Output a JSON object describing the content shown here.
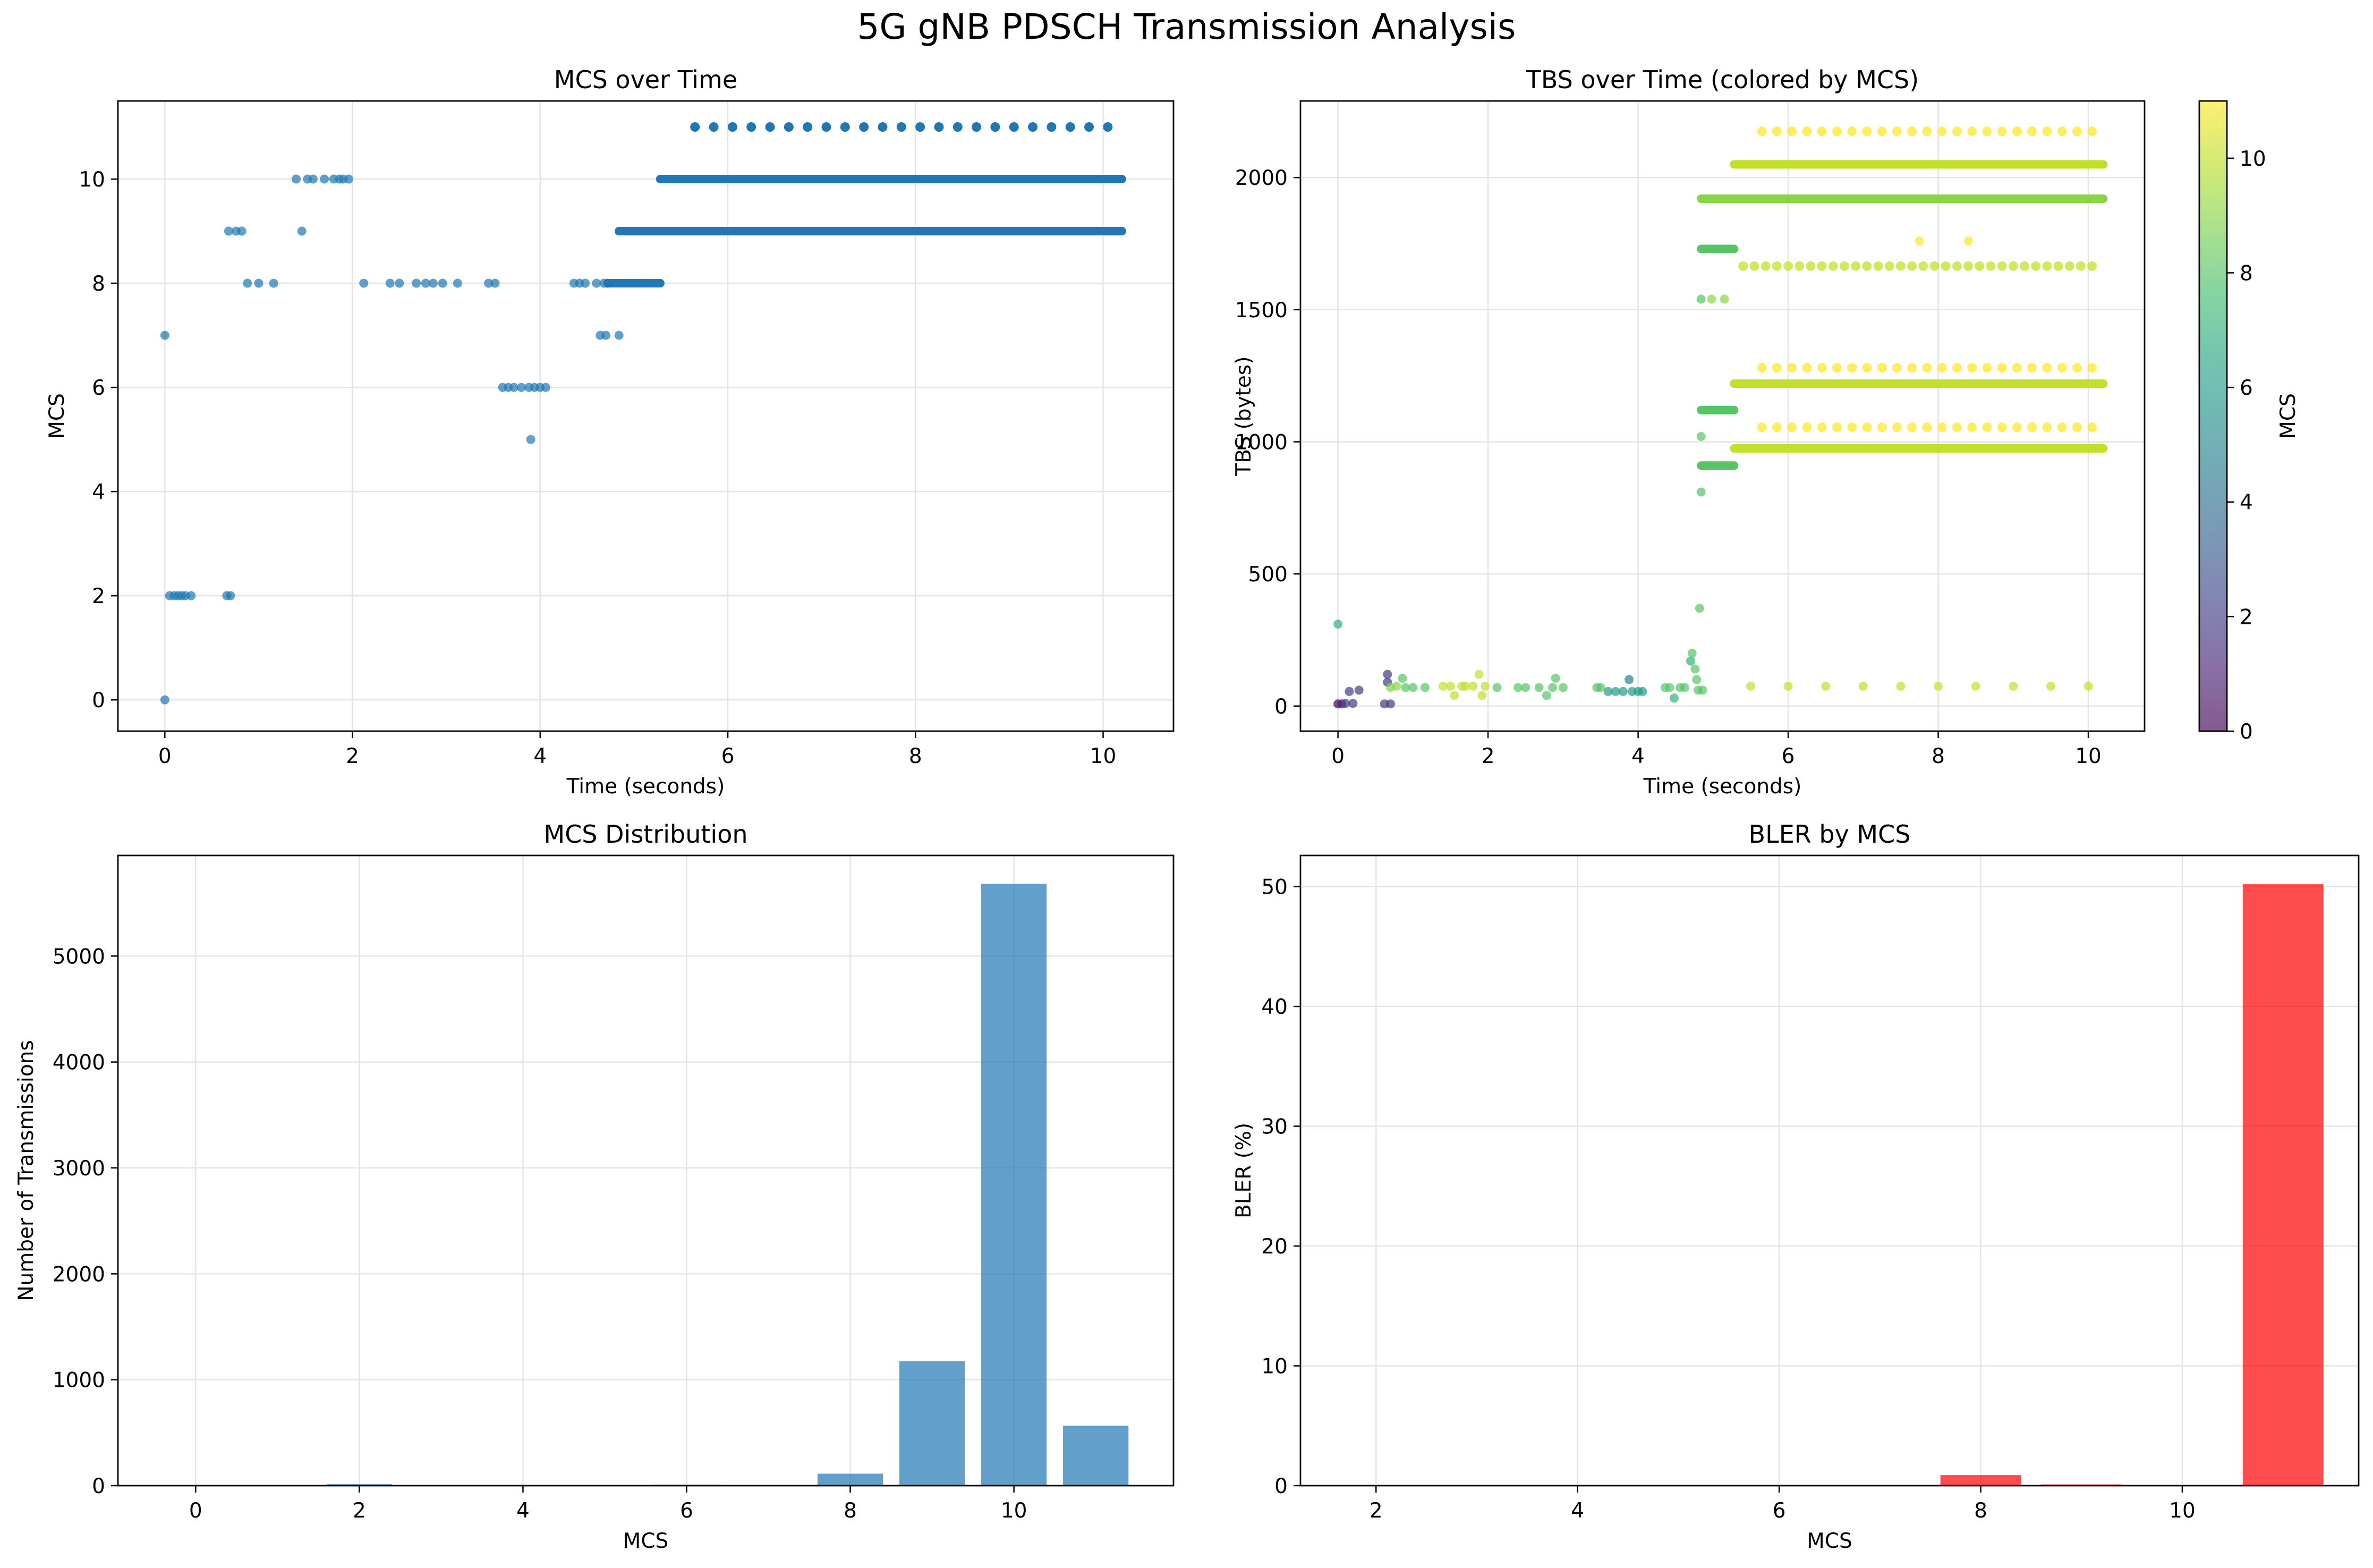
{
  "figure": {
    "suptitle": "5G gNB PDSCH Transmission Analysis"
  },
  "chart_data": [
    {
      "id": "mcs_time",
      "type": "scatter",
      "title": "MCS over Time",
      "xlabel": "Time (seconds)",
      "ylabel": "MCS",
      "xlim": [
        -0.5,
        10.75
      ],
      "ylim": [
        -0.6,
        11.5
      ],
      "xticks": [
        0,
        2,
        4,
        6,
        8,
        10
      ],
      "yticks": [
        0,
        2,
        4,
        6,
        8,
        10
      ],
      "grid": true,
      "color": "#1f77b4",
      "points": [
        [
          0.0,
          0
        ],
        [
          0.0,
          7
        ],
        [
          0.05,
          2
        ],
        [
          0.1,
          2
        ],
        [
          0.14,
          2
        ],
        [
          0.18,
          2
        ],
        [
          0.22,
          2
        ],
        [
          0.28,
          2
        ],
        [
          0.66,
          2
        ],
        [
          0.7,
          2
        ],
        [
          0.68,
          9
        ],
        [
          0.76,
          9
        ],
        [
          0.82,
          9
        ],
        [
          0.88,
          8
        ],
        [
          1.0,
          8
        ],
        [
          1.16,
          8
        ],
        [
          1.4,
          10
        ],
        [
          1.52,
          10
        ],
        [
          1.58,
          10
        ],
        [
          1.7,
          10
        ],
        [
          1.8,
          10
        ],
        [
          1.86,
          10
        ],
        [
          1.9,
          10
        ],
        [
          1.96,
          10
        ],
        [
          1.46,
          9
        ],
        [
          2.12,
          8
        ],
        [
          2.4,
          8
        ],
        [
          2.5,
          8
        ],
        [
          2.68,
          8
        ],
        [
          2.78,
          8
        ],
        [
          2.86,
          8
        ],
        [
          2.96,
          8
        ],
        [
          3.12,
          8
        ],
        [
          3.45,
          8
        ],
        [
          3.52,
          8
        ],
        [
          3.6,
          6
        ],
        [
          3.66,
          6
        ],
        [
          3.72,
          6
        ],
        [
          3.8,
          6
        ],
        [
          3.88,
          6
        ],
        [
          3.94,
          6
        ],
        [
          4.0,
          6
        ],
        [
          4.06,
          6
        ],
        [
          3.9,
          5
        ],
        [
          4.36,
          8
        ],
        [
          4.42,
          8
        ],
        [
          4.48,
          8
        ],
        [
          4.6,
          8
        ],
        [
          4.68,
          8
        ],
        [
          4.72,
          8
        ],
        [
          4.64,
          7
        ],
        [
          4.7,
          7
        ],
        [
          4.84,
          7
        ]
      ],
      "segments": [
        {
          "x0": 4.72,
          "x1": 5.28,
          "y": 8
        },
        {
          "x0": 4.84,
          "x1": 10.2,
          "y": 9
        },
        {
          "x0": 5.28,
          "x1": 10.2,
          "y": 10
        }
      ],
      "dot_rows": [
        {
          "x0": 5.65,
          "x1": 10.2,
          "step": 0.2,
          "y": 11
        }
      ]
    },
    {
      "id": "tbs_time",
      "type": "scatter",
      "title": "TBS over Time (colored by MCS)",
      "xlabel": "Time (seconds)",
      "ylabel": "TBS (bytes)",
      "xlim": [
        -0.5,
        10.75
      ],
      "ylim": [
        -95,
        2290
      ],
      "xticks": [
        0,
        2,
        4,
        6,
        8,
        10
      ],
      "yticks": [
        0,
        500,
        1000,
        1500,
        2000
      ],
      "grid": true,
      "colorbar": {
        "label": "MCS",
        "min": 0,
        "max": 11,
        "ticks": [
          0,
          2,
          4,
          6,
          8,
          10
        ],
        "colormap": "viridis"
      },
      "points": [
        [
          0.0,
          310,
          7
        ],
        [
          0.0,
          8,
          0
        ],
        [
          0.05,
          8,
          1
        ],
        [
          0.1,
          10,
          2
        ],
        [
          0.15,
          55,
          2
        ],
        [
          0.2,
          10,
          2
        ],
        [
          0.28,
          60,
          2
        ],
        [
          0.66,
          120,
          2
        ],
        [
          0.66,
          90,
          2
        ],
        [
          0.62,
          8,
          2
        ],
        [
          0.7,
          8,
          2
        ],
        [
          0.7,
          70,
          9
        ],
        [
          0.78,
          75,
          9
        ],
        [
          0.86,
          105,
          8
        ],
        [
          0.9,
          70,
          8
        ],
        [
          1.0,
          70,
          8
        ],
        [
          1.16,
          70,
          8
        ],
        [
          1.4,
          75,
          10
        ],
        [
          1.5,
          75,
          10
        ],
        [
          1.55,
          40,
          10
        ],
        [
          1.65,
          75,
          10
        ],
        [
          1.7,
          75,
          10
        ],
        [
          1.8,
          75,
          10
        ],
        [
          1.88,
          120,
          10
        ],
        [
          1.92,
          40,
          10
        ],
        [
          1.96,
          75,
          10
        ],
        [
          2.12,
          70,
          8
        ],
        [
          2.4,
          70,
          8
        ],
        [
          2.5,
          70,
          8
        ],
        [
          2.68,
          70,
          8
        ],
        [
          2.78,
          40,
          8
        ],
        [
          2.86,
          70,
          8
        ],
        [
          2.9,
          105,
          8
        ],
        [
          3.0,
          70,
          8
        ],
        [
          3.45,
          70,
          8
        ],
        [
          3.5,
          70,
          8
        ],
        [
          3.6,
          55,
          6
        ],
        [
          3.7,
          55,
          6
        ],
        [
          3.8,
          55,
          6
        ],
        [
          3.88,
          100,
          5
        ],
        [
          3.92,
          55,
          6
        ],
        [
          4.0,
          55,
          6
        ],
        [
          4.06,
          55,
          6
        ],
        [
          4.36,
          70,
          8
        ],
        [
          4.42,
          70,
          8
        ],
        [
          4.48,
          30,
          7
        ],
        [
          4.56,
          70,
          8
        ],
        [
          4.62,
          70,
          8
        ],
        [
          4.7,
          170,
          7
        ],
        [
          4.72,
          200,
          8
        ],
        [
          4.76,
          140,
          8
        ],
        [
          4.78,
          100,
          8
        ],
        [
          4.8,
          60,
          8
        ],
        [
          4.82,
          370,
          8
        ],
        [
          4.86,
          60,
          8
        ],
        [
          4.84,
          1540,
          8
        ],
        [
          4.84,
          1020,
          8
        ],
        [
          4.84,
          810,
          8
        ],
        [
          4.98,
          1540,
          9
        ],
        [
          5.15,
          1540,
          9
        ],
        [
          5.5,
          75,
          10
        ],
        [
          6.0,
          75,
          10
        ],
        [
          6.5,
          75,
          10
        ],
        [
          7.0,
          75,
          10
        ],
        [
          7.5,
          75,
          10
        ],
        [
          8.0,
          75,
          10
        ],
        [
          8.5,
          75,
          10
        ],
        [
          9.0,
          75,
          10
        ],
        [
          9.5,
          75,
          10
        ],
        [
          10.0,
          75,
          10
        ],
        [
          7.75,
          1760,
          11
        ],
        [
          8.4,
          1760,
          11
        ]
      ],
      "segments": [
        {
          "x0": 4.84,
          "x1": 5.28,
          "y": 1730,
          "mcs": 8
        },
        {
          "x0": 4.84,
          "x1": 5.28,
          "y": 1120,
          "mcs": 8
        },
        {
          "x0": 4.84,
          "x1": 5.28,
          "y": 910,
          "mcs": 8
        },
        {
          "x0": 4.84,
          "x1": 10.2,
          "y": 1920,
          "mcs": 9
        },
        {
          "x0": 5.28,
          "x1": 10.2,
          "y": 2050,
          "mcs": 10
        },
        {
          "x0": 5.28,
          "x1": 10.2,
          "y": 1220,
          "mcs": 10
        },
        {
          "x0": 5.28,
          "x1": 10.2,
          "y": 975,
          "mcs": 10
        }
      ],
      "dot_rows": [
        {
          "x0": 5.65,
          "x1": 10.2,
          "step": 0.2,
          "y": 2175,
          "mcs": 11
        },
        {
          "x0": 5.65,
          "x1": 10.2,
          "step": 0.2,
          "y": 1280,
          "mcs": 11
        },
        {
          "x0": 5.65,
          "x1": 10.2,
          "step": 0.2,
          "y": 1055,
          "mcs": 11
        },
        {
          "x0": 5.4,
          "x1": 10.1,
          "step": 0.15,
          "y": 1665,
          "mcs": 10
        }
      ]
    },
    {
      "id": "mcs_dist",
      "type": "bar",
      "title": "MCS Distribution",
      "xlabel": "MCS",
      "ylabel": "Number of Transmissions",
      "xlim": [
        -0.95,
        11.95
      ],
      "ylim": [
        0,
        5950
      ],
      "xticks": [
        0,
        2,
        4,
        6,
        8,
        10
      ],
      "yticks": [
        0,
        1000,
        2000,
        3000,
        4000,
        5000
      ],
      "grid": true,
      "color": "#1f77b4",
      "x": [
        0,
        2,
        5,
        6,
        7,
        8,
        9,
        10,
        11
      ],
      "values": [
        2,
        14,
        1,
        9,
        4,
        113,
        1175,
        5681,
        566
      ]
    },
    {
      "id": "bler",
      "type": "bar",
      "title": "BLER by MCS",
      "xlabel": "MCS",
      "ylabel": "BLER (%)",
      "xlim": [
        1.25,
        11.75
      ],
      "ylim": [
        0,
        52.6
      ],
      "xticks": [
        2,
        4,
        6,
        8,
        10
      ],
      "yticks": [
        0,
        10,
        20,
        30,
        40,
        50
      ],
      "grid": true,
      "color": "#ff0000",
      "x": [
        2,
        8,
        9,
        10,
        11
      ],
      "values": [
        0,
        0.88,
        0.1,
        0,
        50.2
      ]
    }
  ]
}
